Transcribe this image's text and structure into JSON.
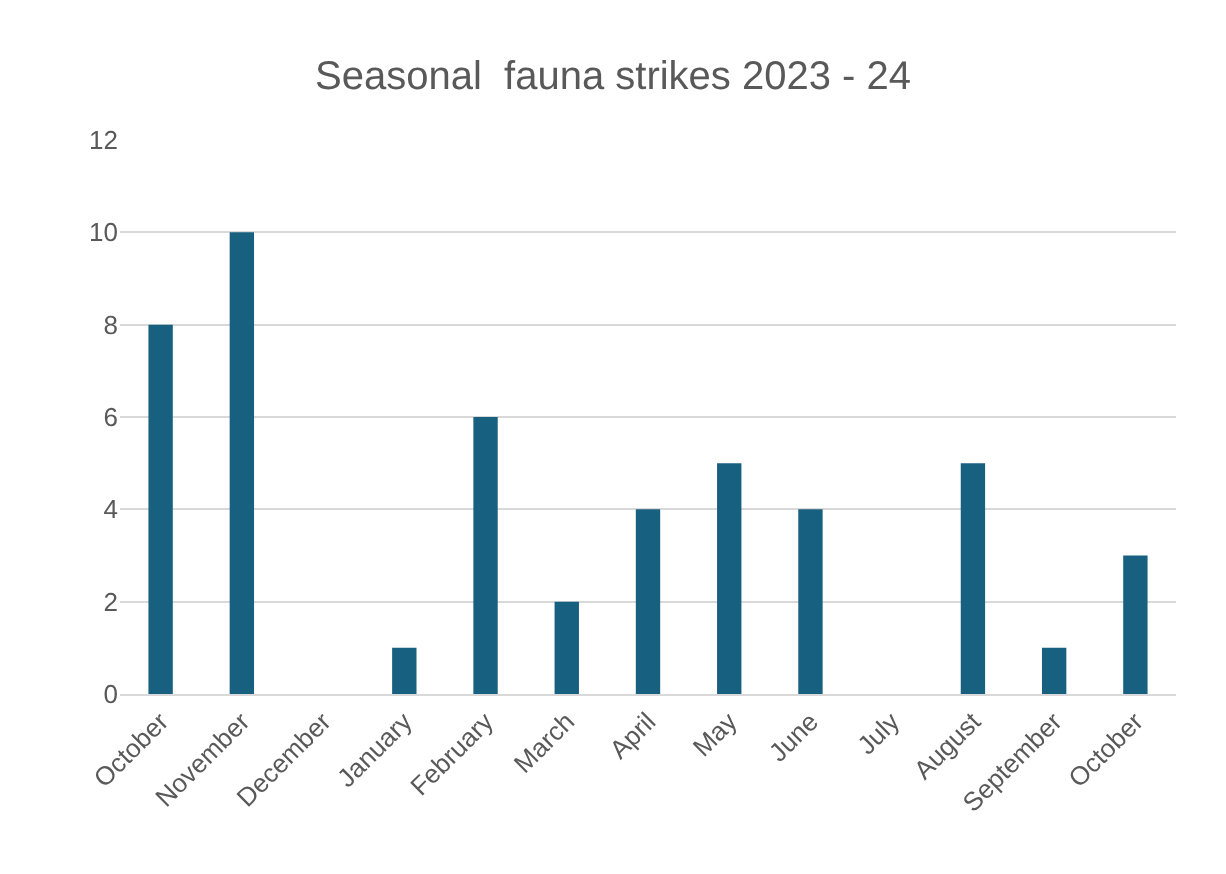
{
  "chart_data": {
    "type": "bar",
    "title": "Seasonal  fauna strikes 2023 - 24",
    "categories": [
      "October",
      "November",
      "December",
      "January",
      "February",
      "March",
      "April",
      "May",
      "June",
      "July",
      "August",
      "September",
      "October"
    ],
    "values": [
      8,
      10,
      0,
      1,
      6,
      2,
      4,
      5,
      4,
      0,
      5,
      1,
      3
    ],
    "color": "#18607f",
    "ylim": [
      0,
      12
    ],
    "yticks": [
      0,
      2,
      4,
      6,
      8,
      10,
      12
    ],
    "grid": "y"
  }
}
